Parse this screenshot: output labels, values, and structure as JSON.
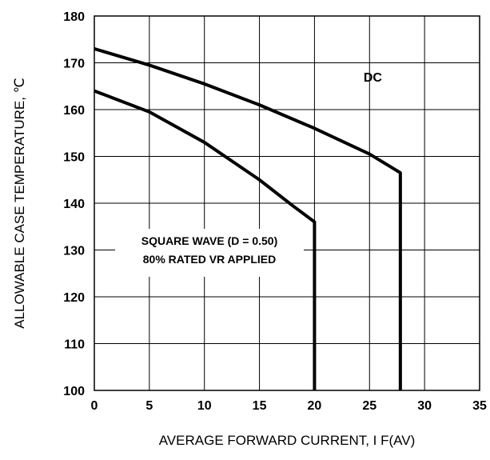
{
  "chart_data": {
    "type": "line",
    "xlabel": "AVERAGE FORWARD CURRENT, I F(AV)",
    "ylabel": "ALLOWABLE CASE TEMPERATURE, ℃",
    "xlim": [
      0,
      35
    ],
    "ylim": [
      100,
      180
    ],
    "x_ticks": [
      0,
      5,
      10,
      15,
      20,
      25,
      30,
      35
    ],
    "y_ticks": [
      100,
      110,
      120,
      130,
      140,
      150,
      160,
      170,
      180
    ],
    "grid": true,
    "series": [
      {
        "name": "DC",
        "x": [
          0,
          5,
          10,
          15,
          20,
          25,
          27.8,
          27.8
        ],
        "y": [
          173,
          169.5,
          165.5,
          161,
          156,
          150.5,
          146.5,
          100
        ]
      },
      {
        "name": "SQUARE WAVE (D = 0.50) 80% RATED VR APPLIED",
        "x": [
          0,
          5,
          10,
          15,
          18,
          20,
          20
        ],
        "y": [
          164,
          159.5,
          153,
          145,
          139.5,
          136,
          100
        ]
      }
    ],
    "annotations": [
      {
        "text": "DC",
        "series": 0
      },
      {
        "lines": [
          "SQUARE WAVE (D = 0.50)",
          "80% RATED VR APPLIED"
        ],
        "series": 1
      }
    ]
  }
}
